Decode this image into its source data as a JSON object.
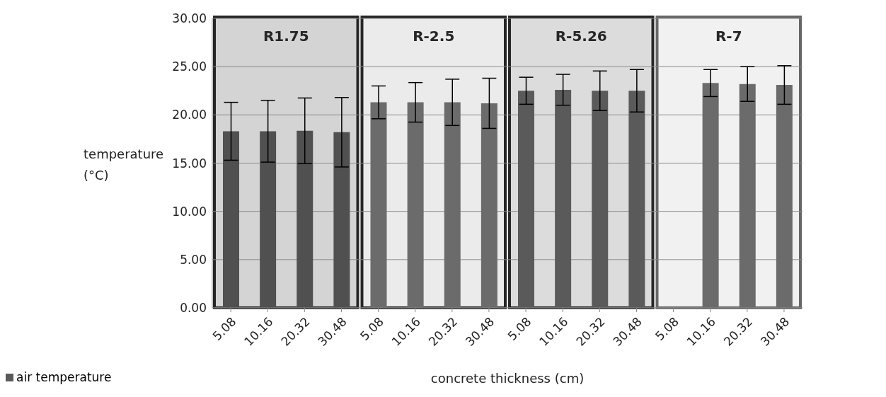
{
  "chart_data": {
    "type": "bar",
    "xlabel": "concrete thickness (cm)",
    "ylabel": "temperature (°C)",
    "categories": [
      "5.08",
      "10.16",
      "20.32",
      "30.48",
      "5.08",
      "10.16",
      "20.32",
      "30.48",
      "5.08",
      "10.16",
      "20.32",
      "30.48",
      "5.08",
      "10.16",
      "20.32",
      "30.48"
    ],
    "series": [
      {
        "name": "air temperature",
        "color": "#5a5a5a",
        "colors": [
          "#505050",
          "#505050",
          "#505050",
          "#505050",
          "#6b6b6b",
          "#6b6b6b",
          "#6b6b6b",
          "#6b6b6b",
          "#5a5a5a",
          "#5a5a5a",
          "#5a5a5a",
          "#5a5a5a",
          "#6b6b6b",
          "#6b6b6b",
          "#6b6b6b",
          "#6b6b6b"
        ],
        "values": [
          18.3,
          18.3,
          18.35,
          18.2,
          21.3,
          21.3,
          21.3,
          21.2,
          22.5,
          22.6,
          22.5,
          22.5,
          0,
          23.3,
          23.2,
          23.1
        ],
        "errors": [
          3.0,
          3.2,
          3.4,
          3.6,
          1.7,
          2.05,
          2.4,
          2.6,
          1.4,
          1.6,
          2.05,
          2.2,
          null,
          1.4,
          1.8,
          2.0
        ]
      }
    ],
    "ylim": [
      0,
      30
    ],
    "yticks": [
      {
        "value": 0,
        "label": "0.00"
      },
      {
        "value": 5,
        "label": "5.00"
      },
      {
        "value": 10,
        "label": "10.00"
      },
      {
        "value": 15,
        "label": "15.00"
      },
      {
        "value": 20,
        "label": "20.00"
      },
      {
        "value": 25,
        "label": "25.00"
      },
      {
        "value": 30,
        "label": "30.00"
      }
    ],
    "grid": "y",
    "legend": "bottom left",
    "annotations": [
      "R1.75",
      "R-2.5",
      "R-5.26",
      "R-7"
    ]
  }
}
